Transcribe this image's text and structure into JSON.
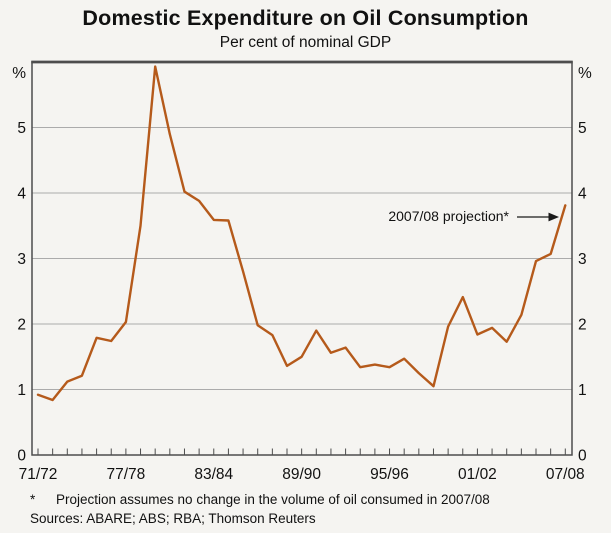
{
  "header": {
    "title": "Domestic Expenditure on Oil Consumption",
    "subtitle": "Per cent of nominal GDP"
  },
  "chart_data": {
    "type": "line",
    "title": "Domestic Expenditure on Oil Consumption",
    "subtitle": "Per cent of nominal GDP",
    "ylabel": "%",
    "axis_labels_both_sides": true,
    "ylim": [
      0,
      6
    ],
    "yticks": [
      0,
      1,
      2,
      3,
      4,
      5
    ],
    "grid": "horizontal",
    "line_color": "#b55a1b",
    "categories": [
      "71/72",
      "72/73",
      "73/74",
      "74/75",
      "75/76",
      "76/77",
      "77/78",
      "78/79",
      "79/80",
      "80/81",
      "81/82",
      "82/83",
      "83/84",
      "84/85",
      "85/86",
      "86/87",
      "87/88",
      "88/89",
      "89/90",
      "90/91",
      "91/92",
      "92/93",
      "93/94",
      "94/95",
      "95/96",
      "96/97",
      "97/98",
      "98/99",
      "99/00",
      "00/01",
      "01/02",
      "02/03",
      "03/04",
      "04/05",
      "05/06",
      "06/07",
      "07/08"
    ],
    "x_tick_indices": [
      0,
      6,
      12,
      18,
      24,
      30,
      36
    ],
    "values": [
      0.92,
      0.84,
      1.12,
      1.21,
      1.79,
      1.74,
      2.03,
      3.5,
      5.93,
      4.9,
      4.02,
      3.88,
      3.59,
      3.58,
      2.8,
      1.98,
      1.83,
      1.36,
      1.5,
      1.9,
      1.56,
      1.64,
      1.34,
      1.38,
      1.34,
      1.47,
      1.25,
      1.05,
      1.96,
      2.41,
      1.84,
      1.94,
      1.73,
      2.14,
      2.96,
      3.07,
      3.81
    ],
    "annotation": {
      "text": "2007/08 projection*",
      "target_category": "07/08",
      "target_value": 3.81
    }
  },
  "footnotes": {
    "marker": "*",
    "note": "Projection assumes no change in the volume of oil consumed in 2007/08",
    "sources": "Sources: ABARE; ABS; RBA; Thomson Reuters"
  }
}
